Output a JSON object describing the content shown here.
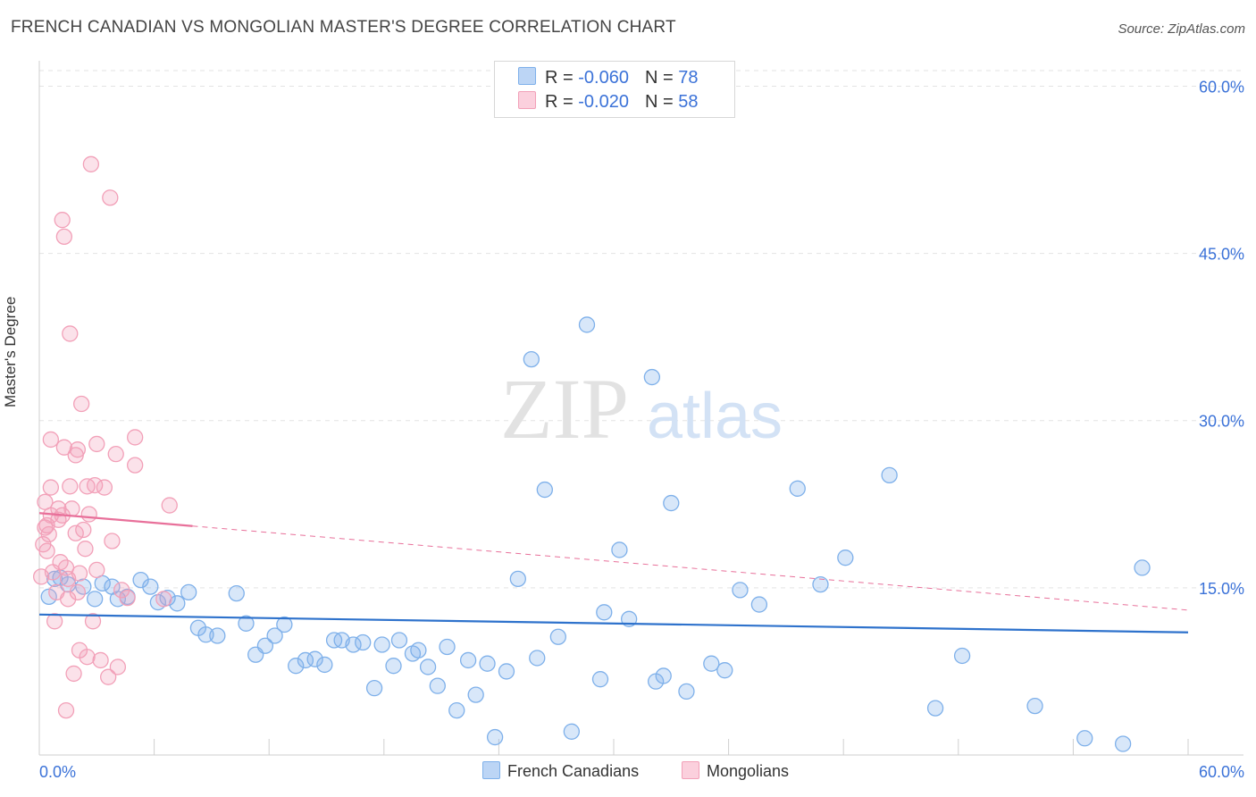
{
  "header": {
    "title": "FRENCH CANADIAN VS MONGOLIAN MASTER'S DEGREE CORRELATION CHART",
    "source": "Source: ZipAtlas.com"
  },
  "legend": {
    "r_label": "R =",
    "n_label": "N =",
    "rows": [
      {
        "r": "-0.060",
        "n": "78",
        "color": "#7eb0ea"
      },
      {
        "r": "-0.020",
        "n": "58",
        "color": "#f2a0b8"
      }
    ]
  },
  "bottom_legend": [
    "French Canadians",
    "Mongolians"
  ],
  "watermark": {
    "zip": "ZIP",
    "atlas": "atlas"
  },
  "chart_data": {
    "type": "scatter",
    "title": "FRENCH CANADIAN VS MONGOLIAN MASTER'S DEGREE CORRELATION CHART",
    "xlabel": "",
    "ylabel": "Master's Degree",
    "xlim": [
      0,
      60
    ],
    "ylim": [
      0,
      60
    ],
    "x_tick_labels": [
      "0.0%",
      "60.0%"
    ],
    "y_tick_labels": [
      "15.0%",
      "30.0%",
      "45.0%",
      "60.0%"
    ],
    "y_ticks": [
      15,
      30,
      45,
      60
    ],
    "grid": true,
    "series": [
      {
        "name": "French Canadians",
        "color": "#7eb0ea",
        "line_color": "#2e72cc",
        "r": -0.06,
        "n": 78,
        "trend": {
          "x": [
            0,
            60
          ],
          "y": [
            12.6,
            11.0
          ],
          "dashed_from": null
        },
        "points": [
          [
            0.5,
            14.2
          ],
          [
            0.8,
            15.8
          ],
          [
            1.1,
            15.9
          ],
          [
            1.5,
            15.3
          ],
          [
            2.3,
            15.1
          ],
          [
            2.9,
            14.0
          ],
          [
            3.3,
            15.4
          ],
          [
            3.8,
            15.1
          ],
          [
            4.1,
            14.0
          ],
          [
            4.6,
            14.2
          ],
          [
            5.3,
            15.7
          ],
          [
            5.8,
            15.1
          ],
          [
            6.2,
            13.7
          ],
          [
            6.7,
            14.1
          ],
          [
            7.2,
            13.6
          ],
          [
            7.8,
            14.6
          ],
          [
            8.3,
            11.4
          ],
          [
            8.7,
            10.8
          ],
          [
            9.3,
            10.7
          ],
          [
            10.3,
            14.5
          ],
          [
            10.8,
            11.8
          ],
          [
            11.3,
            9.0
          ],
          [
            11.8,
            9.8
          ],
          [
            12.3,
            10.7
          ],
          [
            12.8,
            11.7
          ],
          [
            13.4,
            8.0
          ],
          [
            13.9,
            8.5
          ],
          [
            14.4,
            8.6
          ],
          [
            14.9,
            8.1
          ],
          [
            15.4,
            10.3
          ],
          [
            15.8,
            10.3
          ],
          [
            16.4,
            9.9
          ],
          [
            16.9,
            10.1
          ],
          [
            17.5,
            6.0
          ],
          [
            17.9,
            9.9
          ],
          [
            18.5,
            8.0
          ],
          [
            18.8,
            10.3
          ],
          [
            19.5,
            9.1
          ],
          [
            19.8,
            9.4
          ],
          [
            20.3,
            7.9
          ],
          [
            20.8,
            6.2
          ],
          [
            21.3,
            9.7
          ],
          [
            21.8,
            4.0
          ],
          [
            22.4,
            8.5
          ],
          [
            22.8,
            5.4
          ],
          [
            23.4,
            8.2
          ],
          [
            23.8,
            1.6
          ],
          [
            24.4,
            7.5
          ],
          [
            25.0,
            15.8
          ],
          [
            25.7,
            35.5
          ],
          [
            26.0,
            8.7
          ],
          [
            26.4,
            23.8
          ],
          [
            27.1,
            10.6
          ],
          [
            27.8,
            2.1
          ],
          [
            28.6,
            38.6
          ],
          [
            29.3,
            6.8
          ],
          [
            29.5,
            12.8
          ],
          [
            30.3,
            18.4
          ],
          [
            30.8,
            12.2
          ],
          [
            32.0,
            33.9
          ],
          [
            32.2,
            6.6
          ],
          [
            32.6,
            7.1
          ],
          [
            33.0,
            22.6
          ],
          [
            33.8,
            5.7
          ],
          [
            35.1,
            8.2
          ],
          [
            35.8,
            7.6
          ],
          [
            36.6,
            14.8
          ],
          [
            37.6,
            13.5
          ],
          [
            39.6,
            23.9
          ],
          [
            40.8,
            15.3
          ],
          [
            42.1,
            17.7
          ],
          [
            44.4,
            25.1
          ],
          [
            46.8,
            4.2
          ],
          [
            48.2,
            8.9
          ],
          [
            52.0,
            4.4
          ],
          [
            54.6,
            1.5
          ],
          [
            56.6,
            1.0
          ],
          [
            57.6,
            16.8
          ]
        ]
      },
      {
        "name": "Mongolians",
        "color": "#f2a0b8",
        "line_color": "#e8709a",
        "r": -0.02,
        "n": 58,
        "trend": {
          "x": [
            0,
            60
          ],
          "y": [
            21.7,
            13.0
          ],
          "dashed_from": 8.0
        },
        "points": [
          [
            0.1,
            16.0
          ],
          [
            0.2,
            18.9
          ],
          [
            0.3,
            20.4
          ],
          [
            0.3,
            22.7
          ],
          [
            0.4,
            20.6
          ],
          [
            0.5,
            19.8
          ],
          [
            0.6,
            21.5
          ],
          [
            0.6,
            24.0
          ],
          [
            0.6,
            28.3
          ],
          [
            0.7,
            16.4
          ],
          [
            0.8,
            12.0
          ],
          [
            0.9,
            14.6
          ],
          [
            1.0,
            22.1
          ],
          [
            1.1,
            17.3
          ],
          [
            1.2,
            21.5
          ],
          [
            1.3,
            27.6
          ],
          [
            1.4,
            16.8
          ],
          [
            1.5,
            14.0
          ],
          [
            1.6,
            24.1
          ],
          [
            1.7,
            22.1
          ],
          [
            1.9,
            19.9
          ],
          [
            1.9,
            26.9
          ],
          [
            2.0,
            14.6
          ],
          [
            2.1,
            16.3
          ],
          [
            2.3,
            20.2
          ],
          [
            2.4,
            18.5
          ],
          [
            2.5,
            24.1
          ],
          [
            2.6,
            21.6
          ],
          [
            2.8,
            12.0
          ],
          [
            2.9,
            24.2
          ],
          [
            3.0,
            16.6
          ],
          [
            3.4,
            24.0
          ],
          [
            1.8,
            7.3
          ],
          [
            2.1,
            9.4
          ],
          [
            2.5,
            8.8
          ],
          [
            3.6,
            7.0
          ],
          [
            3.2,
            8.5
          ],
          [
            4.1,
            7.9
          ],
          [
            1.4,
            4.0
          ],
          [
            2.7,
            53.0
          ],
          [
            1.2,
            48.0
          ],
          [
            1.3,
            46.5
          ],
          [
            3.7,
            50.0
          ],
          [
            1.6,
            37.8
          ],
          [
            2.2,
            31.5
          ],
          [
            2.0,
            27.4
          ],
          [
            3.0,
            27.9
          ],
          [
            4.0,
            27.0
          ],
          [
            3.8,
            19.2
          ],
          [
            4.3,
            14.8
          ],
          [
            4.6,
            14.1
          ],
          [
            5.0,
            26.0
          ],
          [
            5.0,
            28.5
          ],
          [
            6.5,
            14.0
          ],
          [
            6.8,
            22.4
          ],
          [
            1.0,
            21.1
          ],
          [
            1.5,
            15.8
          ],
          [
            0.4,
            18.3
          ]
        ]
      }
    ]
  }
}
